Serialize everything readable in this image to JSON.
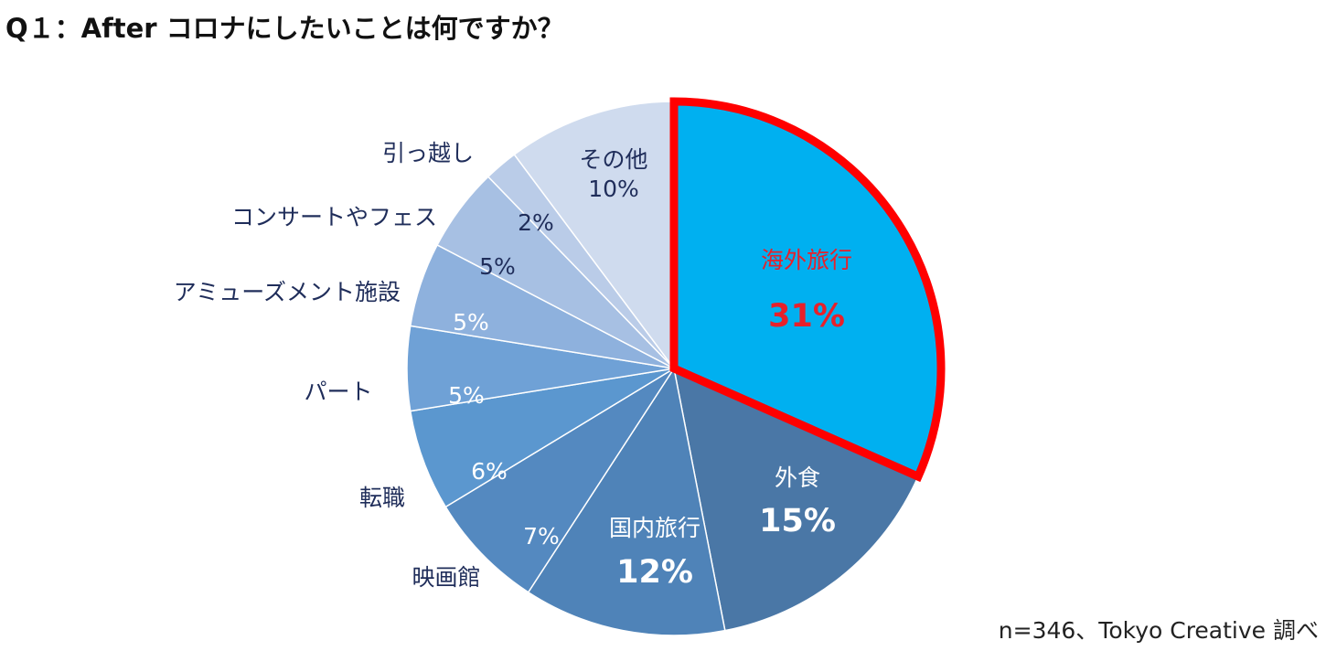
{
  "title": "Q１：After コロナにしたいことは何ですか？",
  "source": "n=346、Tokyo Creative 調べ",
  "chart_data": {
    "type": "pie",
    "title": "Q１：After コロナにしたいことは何ですか？",
    "start_angle_deg": 0,
    "direction": "clockwise",
    "slices": [
      {
        "label": "海外旅行",
        "value": 31,
        "value_label": "31%",
        "color": "#00B0F0",
        "highlight": true
      },
      {
        "label": "外食",
        "value": 15,
        "value_label": "15%",
        "color": "#4A77A6"
      },
      {
        "label": "国内旅行",
        "value": 12,
        "value_label": "12%",
        "color": "#4F83B8"
      },
      {
        "label": "映画館",
        "value": 7,
        "value_label": "7%",
        "color": "#5489C0"
      },
      {
        "label": "転職",
        "value": 6,
        "value_label": "6%",
        "color": "#5B97CF"
      },
      {
        "label": "パート",
        "value": 5,
        "value_label": "5%",
        "color": "#6FA1D6"
      },
      {
        "label": "アミューズメント施設",
        "value": 5,
        "value_label": "5%",
        "color": "#8EB1DD"
      },
      {
        "label": "コンサートやフェス",
        "value": 5,
        "value_label": "5%",
        "color": "#A7C0E3"
      },
      {
        "label": "引っ越し",
        "value": 2,
        "value_label": "2%",
        "color": "#BACCE8"
      },
      {
        "label": "その他",
        "value": 10,
        "value_label": "10%",
        "color": "#CFDBEE"
      }
    ],
    "highlight_outline_color": "#FF0000",
    "inside_label_color_dark": "#1F2D5A",
    "inside_label_color_light": "#FFFFFF",
    "highlight_label_color": "#E8202A"
  }
}
